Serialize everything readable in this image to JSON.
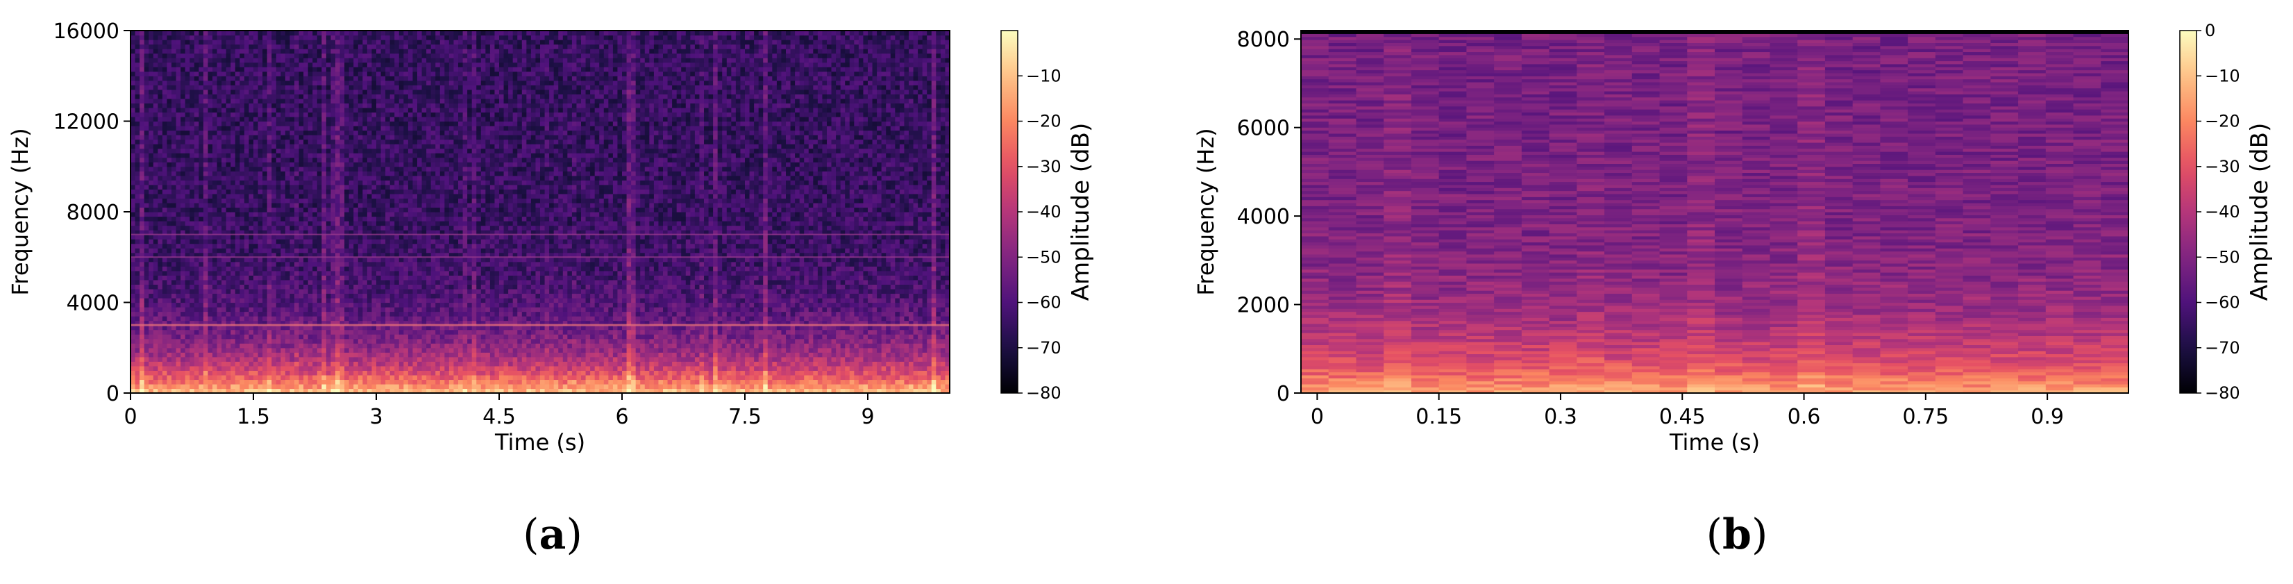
{
  "chart_data": [
    {
      "type": "heatmap",
      "panel_label": {
        "open": "(",
        "letter": "a",
        "close": ")"
      },
      "xlabel": "Time (s)",
      "ylabel": "Frequency (Hz)",
      "xlim": [
        0,
        10
      ],
      "ylim": [
        0,
        16000
      ],
      "x_ticks": [
        0,
        1.5,
        3,
        4.5,
        6,
        7.5,
        9
      ],
      "x_tick_labels": [
        "0",
        "1.5",
        "3",
        "4.5",
        "6",
        "7.5",
        "9"
      ],
      "y_ticks": [
        0,
        4000,
        8000,
        12000,
        16000
      ],
      "y_tick_labels": [
        "0",
        "4000",
        "8000",
        "12000",
        "16000"
      ],
      "colorbar": {
        "label": "Amplitude (dB)",
        "range": [
          -80,
          0
        ],
        "ticks": [
          -10,
          -20,
          -30,
          -40,
          -50,
          -60,
          -70,
          -80
        ],
        "tick_labels": [
          "−10",
          "−20",
          "−30",
          "−40",
          "−50",
          "−60",
          "−70",
          "−80"
        ]
      },
      "colormap": "magma",
      "description_values": {
        "low_freq_level_db": -12,
        "high_freq_level_db": -65,
        "tonal_lines_hz": [
          3000,
          6000,
          7000
        ]
      }
    },
    {
      "type": "heatmap",
      "panel_label": {
        "open": "(",
        "letter": "b",
        "close": ")"
      },
      "xlabel": "Time (s)",
      "ylabel": "Frequency (Hz)",
      "xlim": [
        -0.02,
        1.0
      ],
      "ylim": [
        0,
        8192
      ],
      "x_ticks": [
        0,
        0.15,
        0.3,
        0.45,
        0.6,
        0.75,
        0.9
      ],
      "x_tick_labels": [
        "0",
        "0.15",
        "0.3",
        "0.45",
        "0.6",
        "0.75",
        "0.9"
      ],
      "y_ticks": [
        0,
        2000,
        4000,
        6000,
        8000
      ],
      "y_tick_labels": [
        "0",
        "2000",
        "4000",
        "6000",
        "8000"
      ],
      "colorbar": {
        "label": "Amplitude (dB)",
        "range": [
          -80,
          0
        ],
        "ticks": [
          0,
          -10,
          -20,
          -30,
          -40,
          -50,
          -60,
          -70,
          -80
        ],
        "tick_labels": [
          "0",
          "−10",
          "−20",
          "−30",
          "−40",
          "−50",
          "−60",
          "−70",
          "−80"
        ]
      },
      "colormap": "magma",
      "description_values": {
        "low_freq_level_db": -15,
        "high_freq_level_db": -52,
        "time_frames": 30,
        "freq_bins": 120
      }
    }
  ],
  "colors": {
    "magma": [
      "#000004",
      "#1c1044",
      "#4f127b",
      "#812581",
      "#b5367a",
      "#e55064",
      "#fb8761",
      "#fec287",
      "#fcfdbf"
    ]
  }
}
